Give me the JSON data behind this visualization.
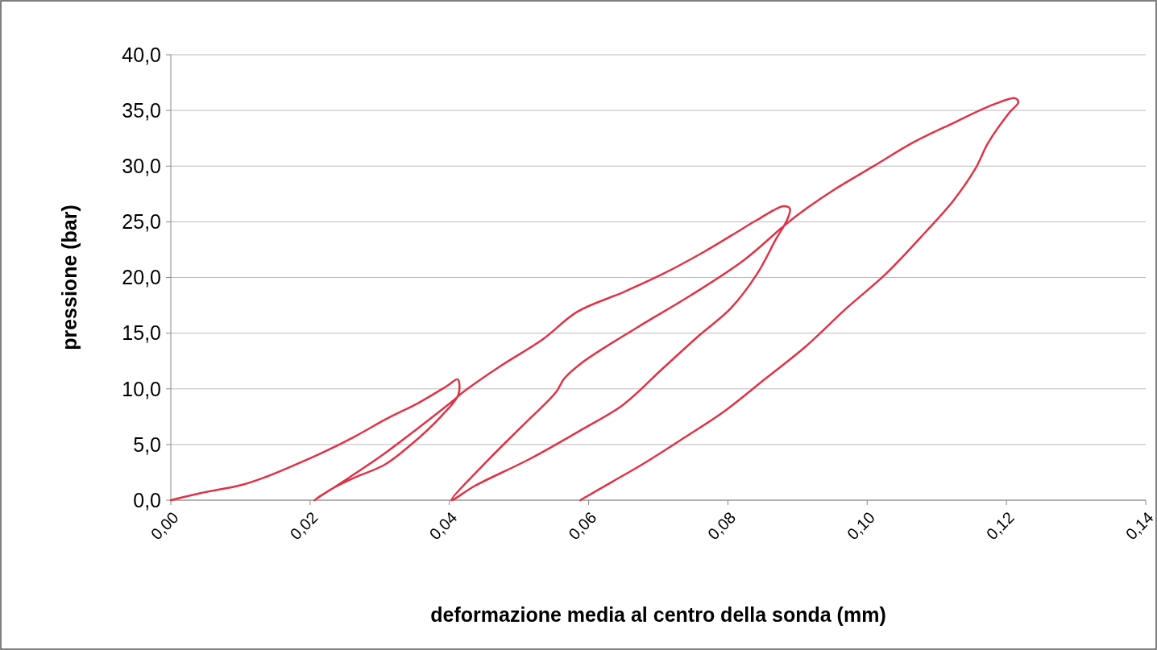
{
  "chart_data": {
    "type": "line",
    "xlabel": "deformazione media al centro della sonda (mm)",
    "ylabel": "pressione (bar)",
    "xlim": [
      0,
      0.14
    ],
    "ylim": [
      0,
      40
    ],
    "xticks": [
      {
        "value": 0,
        "label": "0,00"
      },
      {
        "value": 0.02,
        "label": "0,02"
      },
      {
        "value": 0.04,
        "label": "0,04"
      },
      {
        "value": 0.06,
        "label": "0,06"
      },
      {
        "value": 0.08,
        "label": "0,08"
      },
      {
        "value": 0.1,
        "label": "0,10"
      },
      {
        "value": 0.12,
        "label": "0,12"
      },
      {
        "value": 0.14,
        "label": "0,14"
      }
    ],
    "yticks": [
      {
        "value": 0,
        "label": "0,0"
      },
      {
        "value": 5,
        "label": "5,0"
      },
      {
        "value": 10,
        "label": "10,0"
      },
      {
        "value": 15,
        "label": "15,0"
      },
      {
        "value": 20,
        "label": "20,0"
      },
      {
        "value": 25,
        "label": "25,0"
      },
      {
        "value": 30,
        "label": "30,0"
      },
      {
        "value": 35,
        "label": "35,0"
      },
      {
        "value": 40,
        "label": "40,0"
      }
    ],
    "grid": "y",
    "marker": "none",
    "line_style": "solid",
    "series": [
      {
        "color": "#e03246",
        "x": [
          0,
          0.0044,
          0.0102,
          0.0137,
          0.0171,
          0.0218,
          0.0264,
          0.031,
          0.0356,
          0.0397,
          0.0412,
          0.0413,
          0.0388,
          0.0345,
          0.0307,
          0.0264,
          0.0229,
          0.0206,
          0.0256,
          0.0307,
          0.0353,
          0.0406,
          0.0418,
          0.0476,
          0.0533,
          0.0584,
          0.0649,
          0.0707,
          0.0765,
          0.0804,
          0.0842,
          0.088,
          0.0889,
          0.0885,
          0.0869,
          0.0842,
          0.0804,
          0.0758,
          0.0707,
          0.0649,
          0.0591,
          0.0515,
          0.0437,
          0.0403,
          0.0457,
          0.0507,
          0.0553,
          0.0565,
          0.0591,
          0.0669,
          0.0746,
          0.0823,
          0.0877,
          0.09,
          0.095,
          0.1008,
          0.1066,
          0.1123,
          0.1181,
          0.1213,
          0.1217,
          0.1204,
          0.1174,
          0.1155,
          0.1123,
          0.1085,
          0.1027,
          0.097,
          0.0912,
          0.0854,
          0.0796,
          0.0738,
          0.068,
          0.0634,
          0.0588
        ],
        "values": [
          0,
          0.65,
          1.37,
          2.1,
          2.97,
          4.27,
          5.71,
          7.31,
          8.75,
          10.27,
          10.85,
          9.48,
          7.52,
          4.99,
          3.18,
          2.03,
          0.94,
          0,
          2.03,
          4.2,
          6.37,
          8.97,
          9.62,
          12.15,
          14.39,
          16.93,
          18.66,
          20.33,
          22.28,
          23.73,
          25.17,
          26.4,
          26.18,
          25.17,
          23.44,
          20.33,
          17.22,
          14.76,
          11.86,
          8.54,
          6.37,
          3.69,
          1.3,
          0,
          3.69,
          6.8,
          9.69,
          10.92,
          12.37,
          15.48,
          18.37,
          21.56,
          24.45,
          25.61,
          27.78,
          29.95,
          32.12,
          33.85,
          35.52,
          36.09,
          35.73,
          34.79,
          32.12,
          29.73,
          26.84,
          24.16,
          20.33,
          17.22,
          13.82,
          10.92,
          8.03,
          5.64,
          3.33,
          1.66,
          0
        ]
      }
    ]
  }
}
